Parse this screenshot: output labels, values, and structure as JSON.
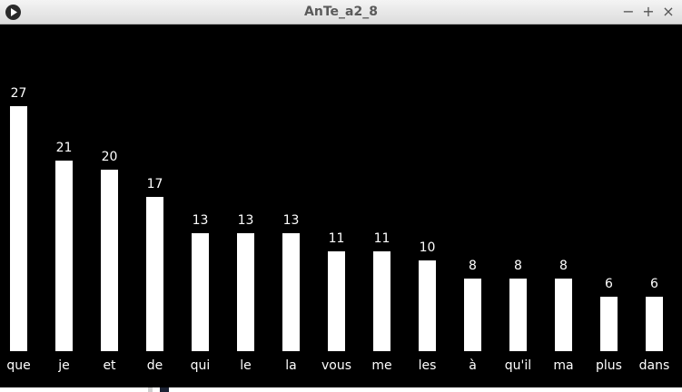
{
  "window": {
    "title": "AnTe_a2_8",
    "minimize_glyph": "−",
    "maximize_glyph": "+",
    "close_glyph": "×"
  },
  "colors": {
    "background": "#000000",
    "bar": "#ffffff",
    "text": "#ffffff"
  },
  "chart_data": {
    "type": "bar",
    "categories": [
      "que",
      "je",
      "et",
      "de",
      "qui",
      "le",
      "la",
      "vous",
      "me",
      "les",
      "à",
      "qu'il",
      "ma",
      "plus",
      "dans"
    ],
    "values": [
      27,
      21,
      20,
      17,
      13,
      13,
      13,
      11,
      11,
      10,
      8,
      8,
      8,
      6,
      6
    ],
    "title": "",
    "xlabel": "",
    "ylabel": "",
    "ylim": [
      0,
      27
    ],
    "grid": false
  }
}
